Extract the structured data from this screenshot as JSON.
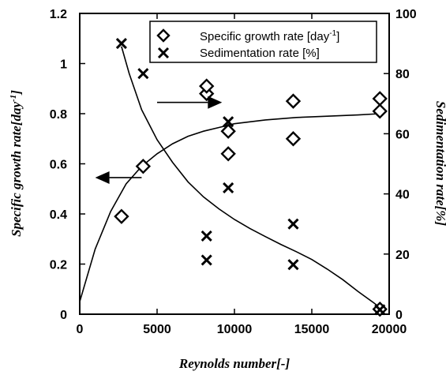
{
  "chart_data": {
    "type": "scatter",
    "xlabel": "Reynolds number[-]",
    "ylabel_left": "Specific growth rate[day",
    "ylabel_left_sup": "-1",
    "ylabel_left_end": "]",
    "ylabel_right": "Sedimentation rate[%]",
    "xlim": [
      0,
      20000
    ],
    "ylim_left": [
      0,
      1.2
    ],
    "ylim_right": [
      0,
      100
    ],
    "x_ticks": [
      "0",
      "5000",
      "10000",
      "15000",
      "20000"
    ],
    "y_left_ticks": [
      "0",
      "0.2",
      "0.4",
      "0.6",
      "0.8",
      "1",
      "1.2"
    ],
    "y_right_ticks": [
      "0",
      "20",
      "40",
      "60",
      "80",
      "100"
    ],
    "legend": {
      "position": "top-right",
      "entries": [
        {
          "marker": "diamond",
          "label": "Specific growth rate [day",
          "sup": "-1",
          "label_end": "]"
        },
        {
          "marker": "cross",
          "label": "Sedimentation rate [%]"
        }
      ]
    },
    "series": [
      {
        "name": "Specific growth rate [day-1]",
        "axis": "left",
        "marker": "diamond",
        "points": [
          [
            2700,
            0.39
          ],
          [
            4100,
            0.59
          ],
          [
            8200,
            0.88
          ],
          [
            8200,
            0.91
          ],
          [
            9600,
            0.73
          ],
          [
            9600,
            0.64
          ],
          [
            13800,
            0.85
          ],
          [
            13800,
            0.7
          ],
          [
            19400,
            0.86
          ],
          [
            19400,
            0.81
          ],
          [
            19400,
            0.02
          ]
        ]
      },
      {
        "name": "Sedimentation rate [%]",
        "axis": "right",
        "marker": "cross",
        "points": [
          [
            2700,
            90
          ],
          [
            4100,
            80
          ],
          [
            8200,
            26
          ],
          [
            8200,
            18
          ],
          [
            9600,
            64
          ],
          [
            9600,
            42
          ],
          [
            13800,
            30
          ],
          [
            13800,
            16.5
          ],
          [
            19400,
            1.5
          ]
        ]
      }
    ],
    "fit_curves": [
      {
        "axis": "left",
        "points": [
          [
            0,
            0.05
          ],
          [
            1000,
            0.26
          ],
          [
            2000,
            0.41
          ],
          [
            3000,
            0.52
          ],
          [
            4000,
            0.59
          ],
          [
            5000,
            0.64
          ],
          [
            6000,
            0.68
          ],
          [
            7000,
            0.71
          ],
          [
            8000,
            0.73
          ],
          [
            9000,
            0.745
          ],
          [
            10000,
            0.76
          ],
          [
            12000,
            0.775
          ],
          [
            14000,
            0.785
          ],
          [
            16000,
            0.79
          ],
          [
            18000,
            0.795
          ],
          [
            19400,
            0.8
          ]
        ]
      },
      {
        "axis": "right",
        "points": [
          [
            2700,
            89
          ],
          [
            3200,
            80
          ],
          [
            4000,
            68
          ],
          [
            5000,
            58
          ],
          [
            6000,
            50.5
          ],
          [
            7000,
            44
          ],
          [
            8000,
            39
          ],
          [
            9000,
            35
          ],
          [
            10000,
            31.5
          ],
          [
            11000,
            28.5
          ],
          [
            12000,
            25.8
          ],
          [
            13000,
            23.2
          ],
          [
            14000,
            20.8
          ],
          [
            15000,
            18.2
          ],
          [
            16000,
            15
          ],
          [
            17000,
            11.5
          ],
          [
            18000,
            7.5
          ],
          [
            19000,
            3.8
          ],
          [
            19500,
            1.8
          ]
        ]
      }
    ],
    "annotations": [
      {
        "type": "arrow",
        "direction": "right",
        "axis": "left",
        "from": [
          5000,
          0.845
        ],
        "to": [
          9200,
          0.845
        ]
      },
      {
        "type": "arrow",
        "direction": "left",
        "axis": "left",
        "from": [
          4000,
          0.545
        ],
        "to": [
          1000,
          0.545
        ]
      }
    ]
  }
}
